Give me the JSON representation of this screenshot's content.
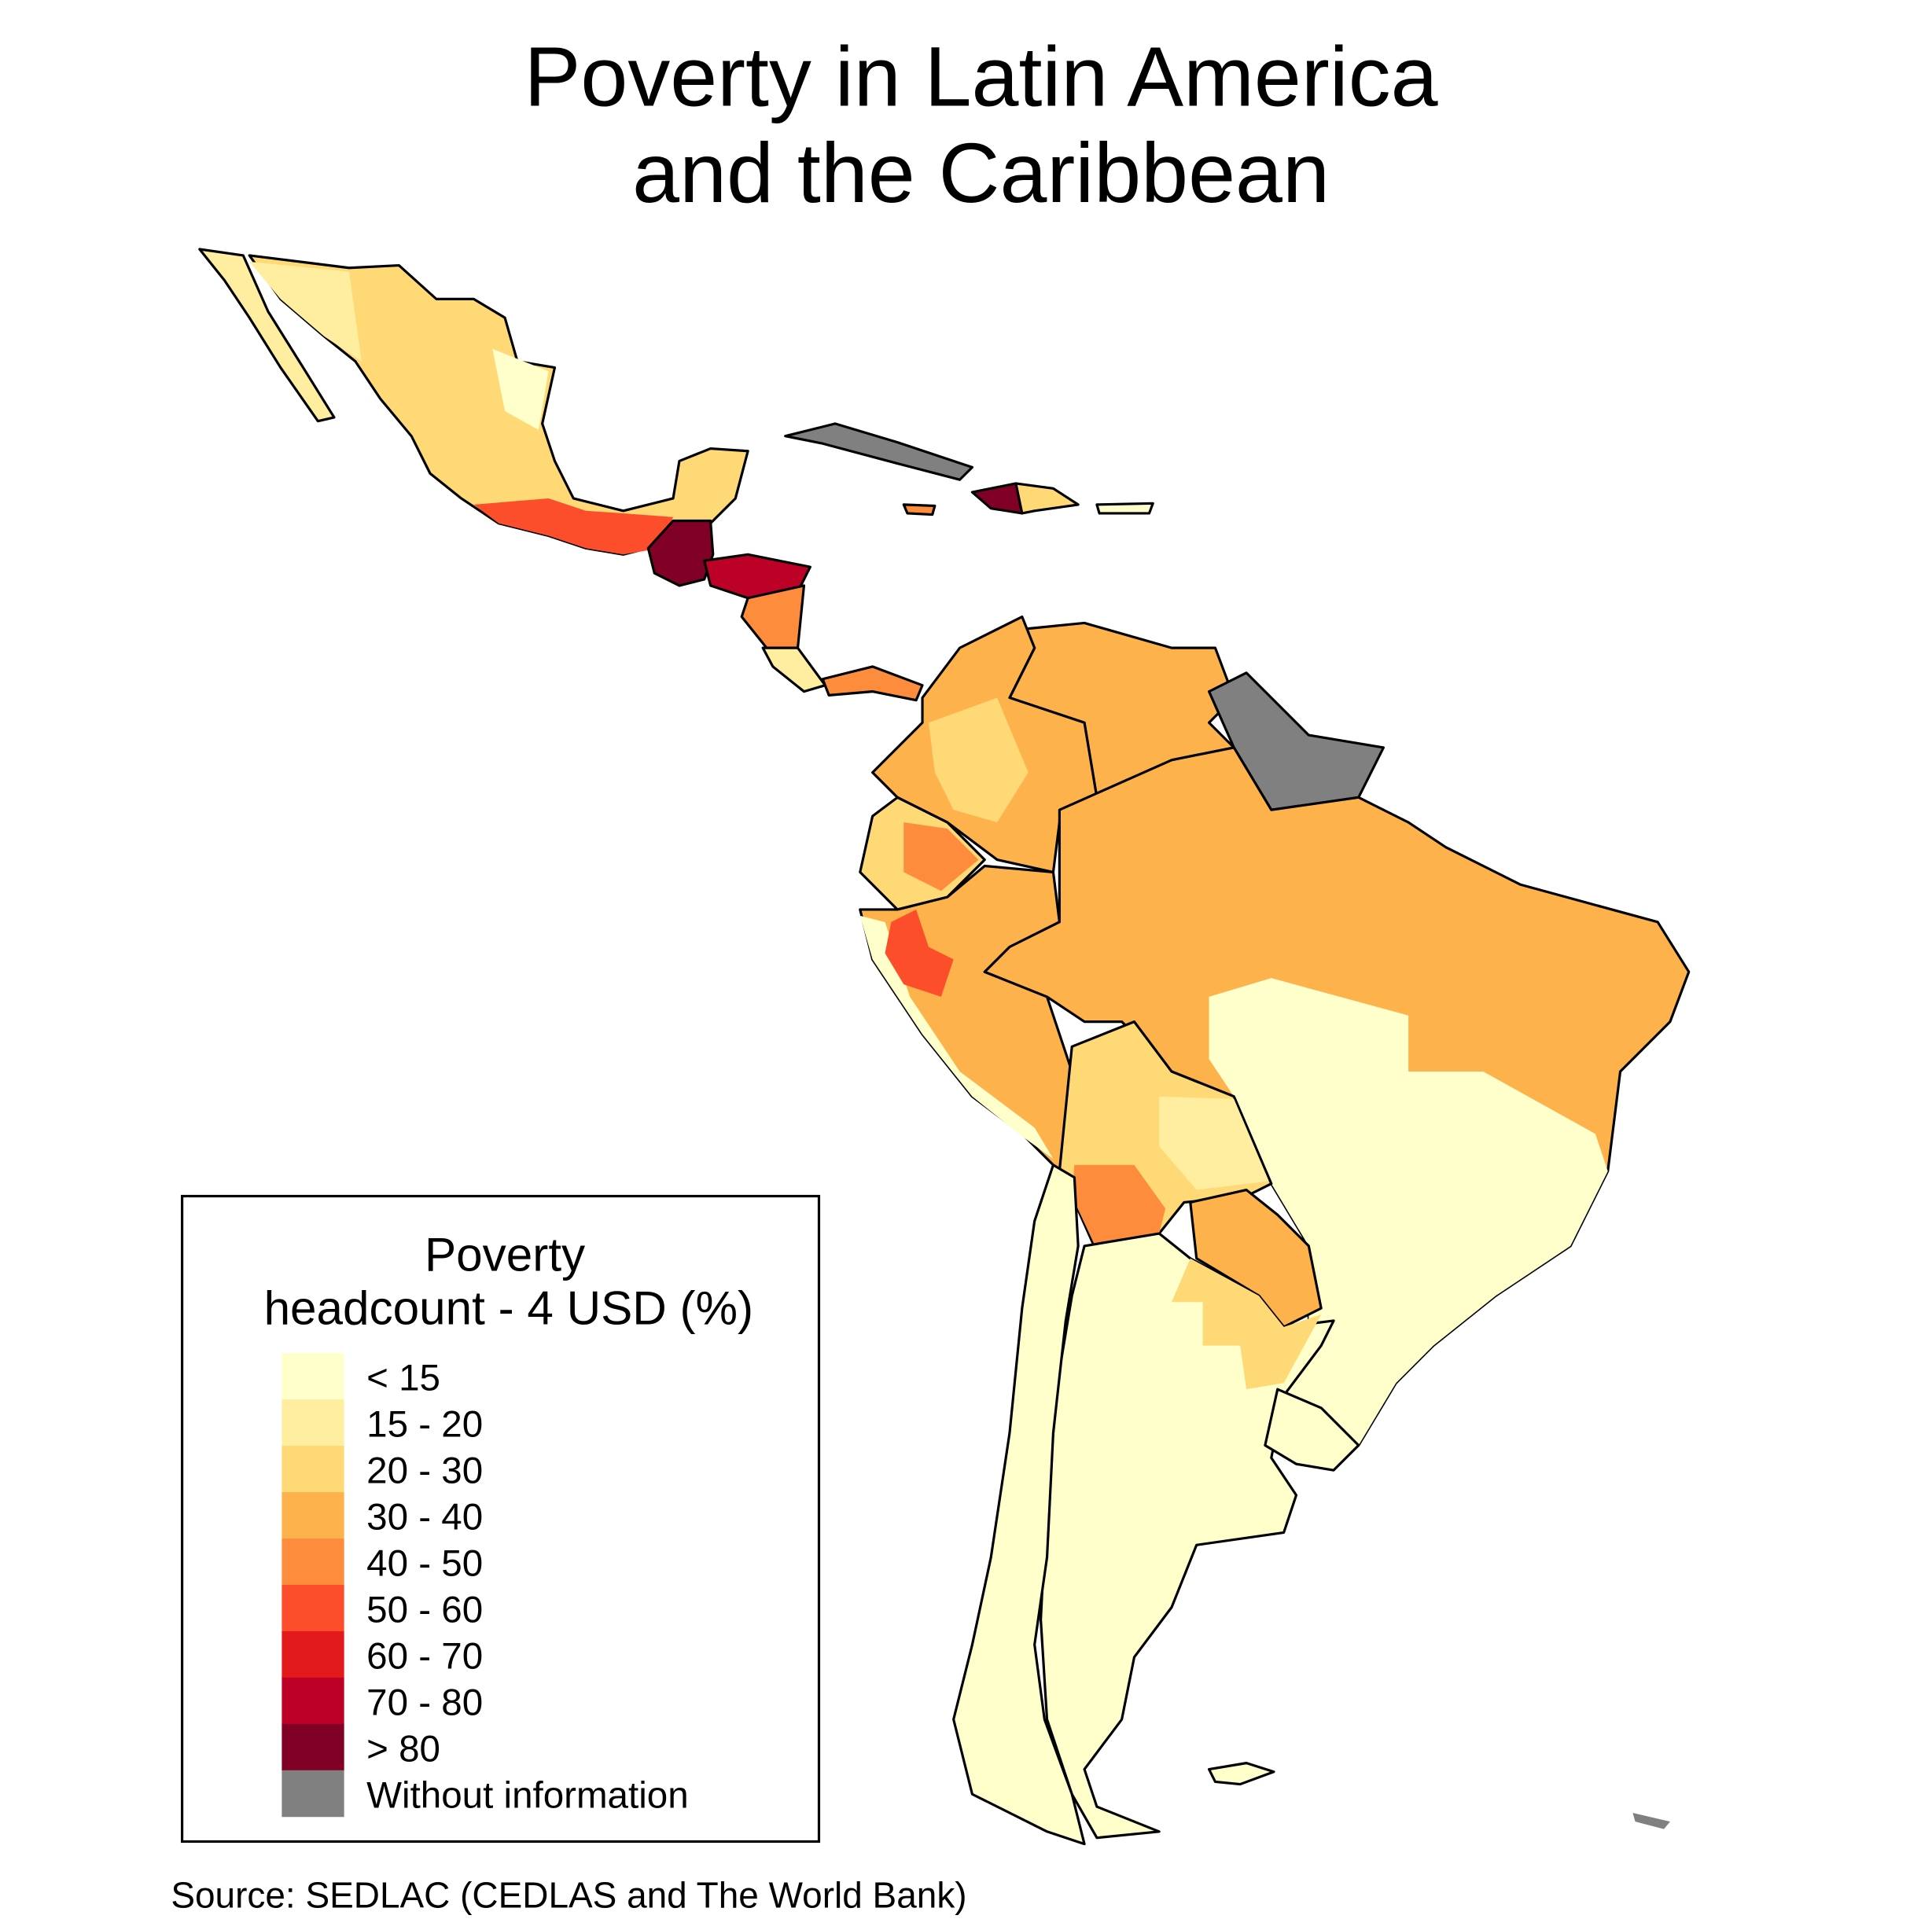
{
  "title_line1": "Poverty in Latin America",
  "title_line2": "and the Caribbean",
  "legend": {
    "title_line1": "Poverty",
    "title_line2": "headcount - 4 USD (%)",
    "items": [
      {
        "label": "< 15",
        "color": "#ffffcc"
      },
      {
        "label": "15 - 20",
        "color": "#ffeda0"
      },
      {
        "label": "20 - 30",
        "color": "#fed976"
      },
      {
        "label": "30 - 40",
        "color": "#feb24c"
      },
      {
        "label": "40 - 50",
        "color": "#fd8d3c"
      },
      {
        "label": "50 - 60",
        "color": "#fc4e2a"
      },
      {
        "label": "60 - 70",
        "color": "#e31a1c"
      },
      {
        "label": "70 - 80",
        "color": "#bd0026"
      },
      {
        "label": "> 80",
        "color": "#800026"
      },
      {
        "label": "Without information",
        "color": "#808080"
      }
    ]
  },
  "source": "Source: SEDLAC (CEDLAS and The World Bank)"
}
